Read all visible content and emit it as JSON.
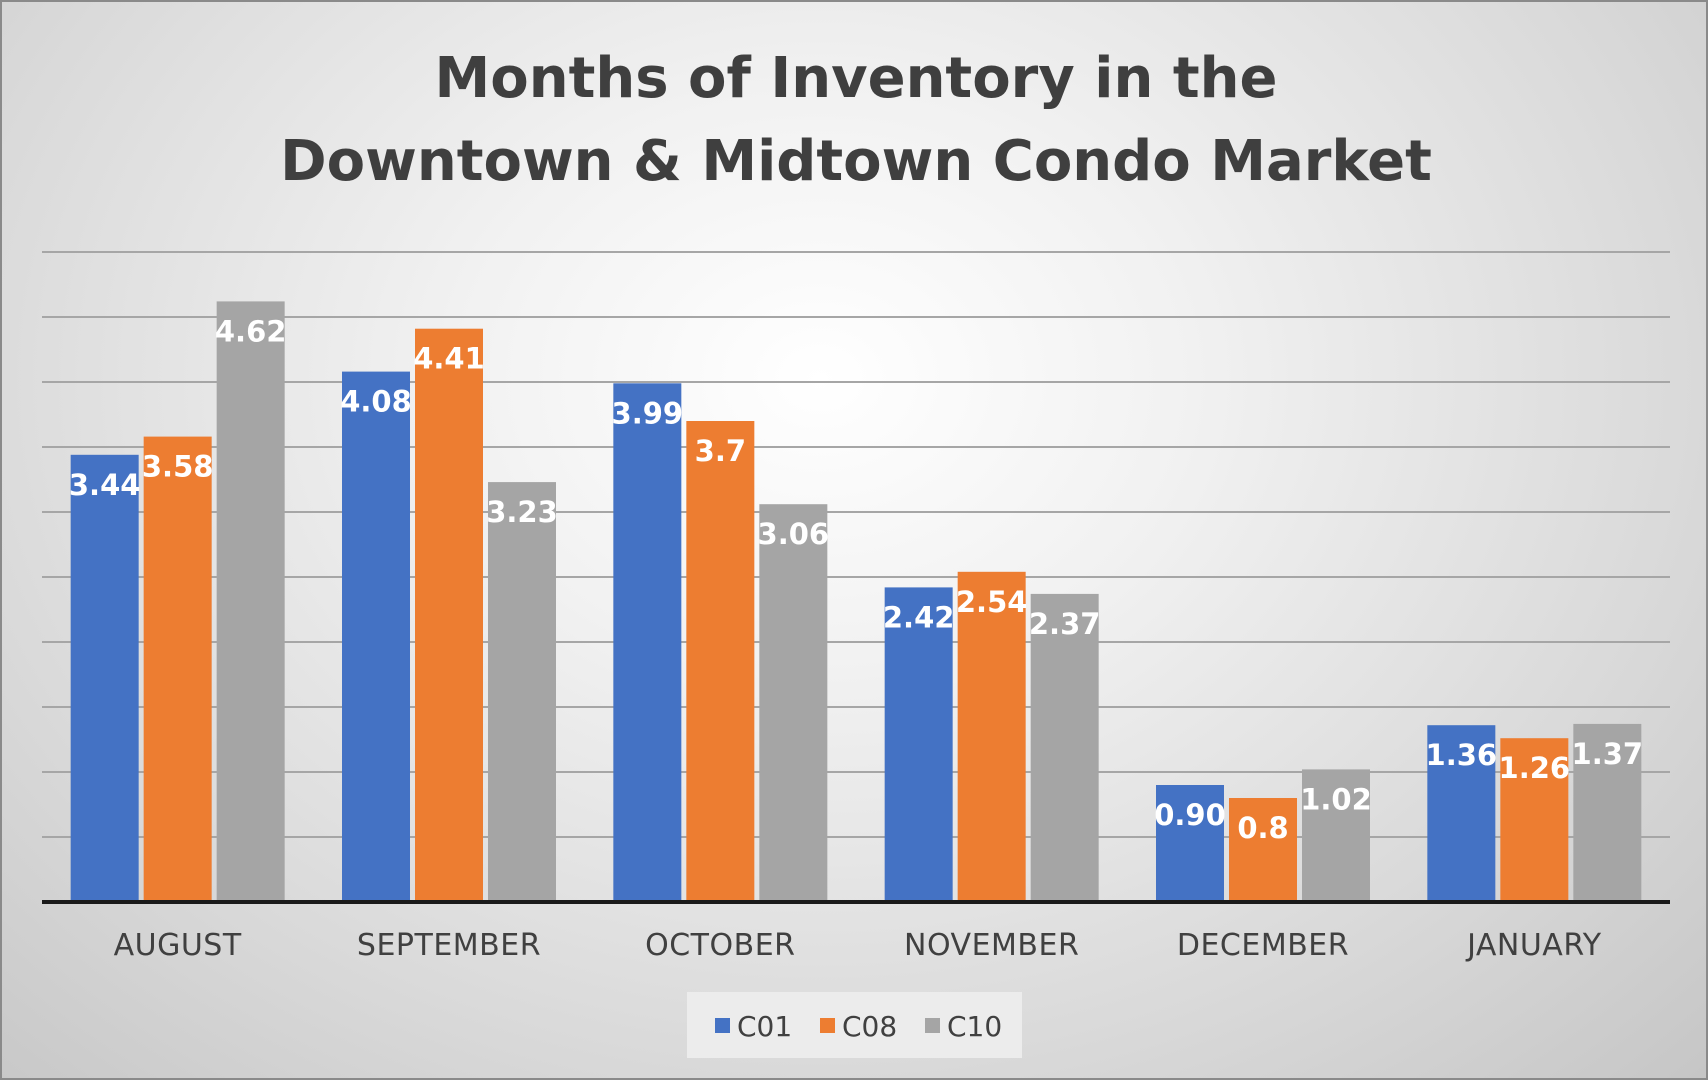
{
  "chart_data": {
    "type": "bar",
    "title": [
      "Months of Inventory in the",
      "Downtown & Midtown Condo Market"
    ],
    "categories": [
      "AUGUST",
      "SEPTEMBER",
      "OCTOBER",
      "NOVEMBER",
      "DECEMBER",
      "JANUARY"
    ],
    "series": [
      {
        "name": "C01",
        "color": "#4472c4",
        "values": [
          3.44,
          4.08,
          3.99,
          2.42,
          0.9,
          1.36
        ],
        "labels": [
          "3.44",
          "4.08",
          "3.99",
          "2.42",
          "0.90",
          "1.36"
        ]
      },
      {
        "name": "C08",
        "color": "#ed7d31",
        "values": [
          3.58,
          4.41,
          3.7,
          2.54,
          0.8,
          1.26
        ],
        "labels": [
          "3.58",
          "4.41",
          "3.7",
          "2.54",
          "0.8",
          "1.26"
        ]
      },
      {
        "name": "C10",
        "color": "#a5a5a5",
        "values": [
          4.62,
          3.23,
          3.06,
          2.37,
          1.02,
          1.37
        ],
        "labels": [
          "4.62",
          "3.23",
          "3.06",
          "2.37",
          "1.02",
          "1.37"
        ]
      }
    ],
    "ylim": [
      0,
      5
    ],
    "grid": true,
    "legend": "bottom"
  }
}
